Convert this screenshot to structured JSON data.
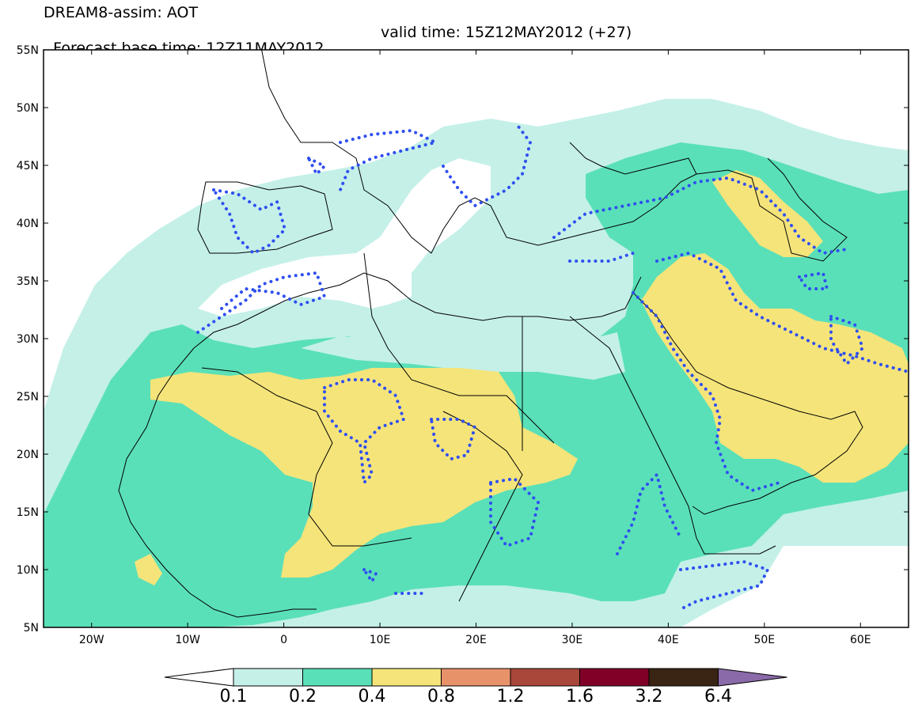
{
  "title": {
    "line1": "DREAM8-assim: AOT",
    "line2_left": "Forecast base time: 12Z11MAY2012",
    "line2_right": "valid time: 15Z12MAY2012 (+27)"
  },
  "map": {
    "projection": "lat-lon",
    "lon_range": [
      -25,
      65
    ],
    "lat_range": [
      5,
      55
    ],
    "lat_ticks": [
      "55N",
      "50N",
      "45N",
      "40N",
      "35N",
      "30N",
      "25N",
      "20N",
      "15N",
      "10N",
      "5N"
    ],
    "lon_ticks": [
      "20W",
      "10W",
      "0",
      "10E",
      "20E",
      "30E",
      "40E",
      "50E",
      "60E"
    ],
    "fill_field": "aerosol optical thickness (AOT)",
    "contour_overlay": "blue dotted contour",
    "colors": {
      "background_below_0_1": "#ffffff",
      "coast_and_borders": "#000000",
      "dotted_contour": "#2f4ff0"
    }
  },
  "colorbar": {
    "levels": [
      "0.1",
      "0.2",
      "0.4",
      "0.8",
      "1.2",
      "1.6",
      "3.2",
      "6.4"
    ],
    "colors": [
      "#ffffff",
      "#c4f0e8",
      "#5ae0b8",
      "#f5e47a",
      "#e8926a",
      "#a8473a",
      "#800028",
      "#3a2414",
      "#8a6aa8"
    ]
  }
}
